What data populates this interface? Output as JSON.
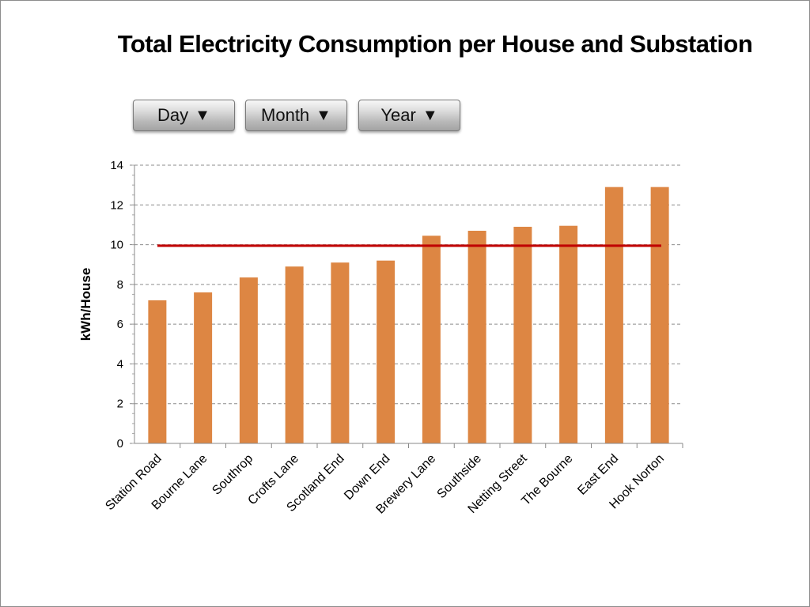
{
  "title": "Total Electricity Consumption per House and Substation",
  "buttons": [
    {
      "label": "Day",
      "icon": "triangle-down-icon"
    },
    {
      "label": "Month",
      "icon": "triangle-down-icon"
    },
    {
      "label": "Year",
      "icon": "triangle-down-icon"
    }
  ],
  "chart_data": {
    "type": "bar",
    "title": "Total Electricity Consumption per House and Substation",
    "xlabel": "",
    "ylabel": "kWh/House",
    "ylim": [
      0,
      14
    ],
    "yticks": [
      0,
      2,
      4,
      6,
      8,
      10,
      12,
      14
    ],
    "grid": true,
    "categories": [
      "Station Road",
      "Bourne Lane",
      "Southrop",
      "Crofts Lane",
      "Scotland End",
      "Down End",
      "Brewery Lane",
      "Southside",
      "Netting Street",
      "The Bourne",
      "East End",
      "Hook Norton"
    ],
    "values": [
      7.2,
      7.6,
      8.35,
      8.9,
      9.1,
      9.2,
      10.45,
      10.7,
      10.9,
      10.95,
      12.9,
      12.9
    ],
    "reference_line": 9.95,
    "colors": {
      "bar": "#dd8643",
      "reference_line": "#c00000",
      "grid": "#8c8c8c"
    }
  }
}
